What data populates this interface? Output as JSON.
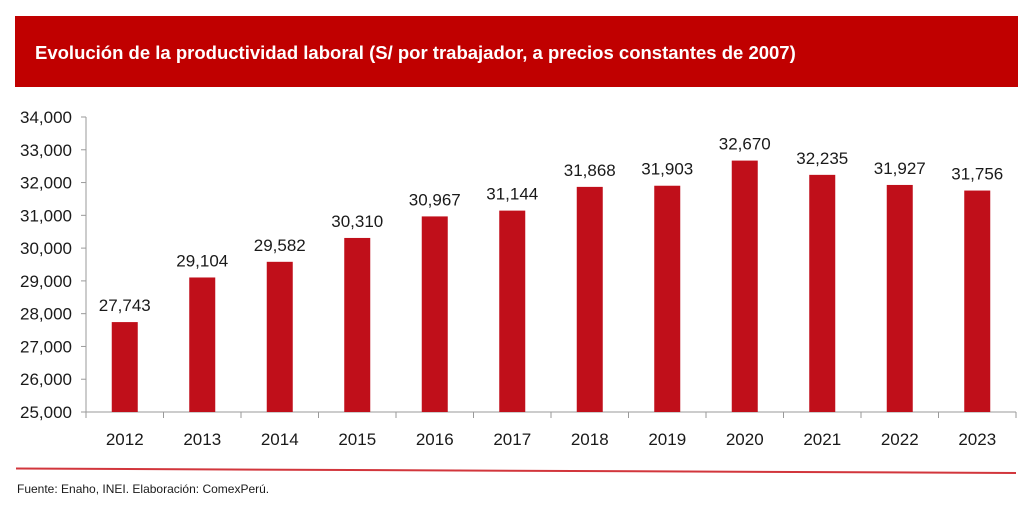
{
  "header": {
    "title": "Evolución de la productividad laboral (S/ por trabajador, a precios constantes de 2007)"
  },
  "footer": {
    "source": "Fuente: Enaho, INEI. Elaboración: ComexPerú."
  },
  "colors": {
    "banner": "#c00000",
    "bar": "#c00f1a",
    "axis": "#9a9a9a",
    "divider": "#d2363c"
  },
  "chart_data": {
    "type": "bar",
    "title": "Evolución de la productividad laboral (S/ por trabajador, a precios constantes de 2007)",
    "xlabel": "",
    "ylabel": "",
    "categories": [
      "2012",
      "2013",
      "2014",
      "2015",
      "2016",
      "2017",
      "2018",
      "2019",
      "2020",
      "2021",
      "2022",
      "2023"
    ],
    "values": [
      27743,
      29104,
      29582,
      30310,
      30967,
      31144,
      31868,
      31903,
      32670,
      32235,
      31927,
      31756
    ],
    "data_labels": [
      "27,743",
      "29,104",
      "29,582",
      "30,310",
      "30,967",
      "31,144",
      "31,868",
      "31,903",
      "32,670",
      "32,235",
      "31,927",
      "31,756"
    ],
    "ylim": [
      25000,
      34000
    ],
    "yticks": [
      25000,
      26000,
      27000,
      28000,
      29000,
      30000,
      31000,
      32000,
      33000,
      34000
    ],
    "ytick_labels": [
      "25,000",
      "26,000",
      "27,000",
      "28,000",
      "29,000",
      "30,000",
      "31,000",
      "32,000",
      "33,000",
      "34,000"
    ],
    "grid": false,
    "legend": "none"
  }
}
